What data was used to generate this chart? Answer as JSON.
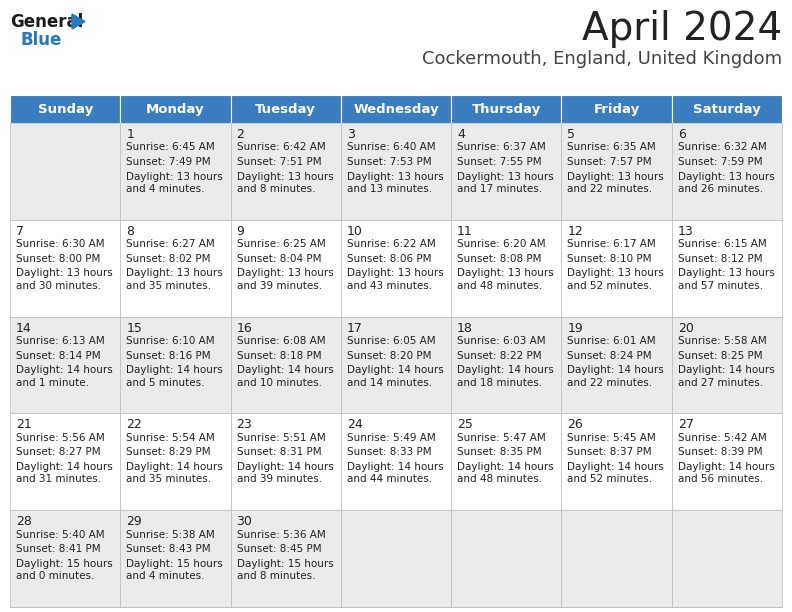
{
  "title": "April 2024",
  "subtitle": "Cockermouth, England, United Kingdom",
  "header_color": "#3a7ebf",
  "header_text_color": "#ffffff",
  "background_color": "#ffffff",
  "row_colors": [
    "#ebebeb",
    "#ffffff"
  ],
  "grid_color": "#bbbbbb",
  "text_color": "#222222",
  "day_headers": [
    "Sunday",
    "Monday",
    "Tuesday",
    "Wednesday",
    "Thursday",
    "Friday",
    "Saturday"
  ],
  "weeks": [
    [
      {
        "day": "",
        "sunrise": "",
        "sunset": "",
        "daylight": ""
      },
      {
        "day": "1",
        "sunrise": "6:45 AM",
        "sunset": "7:49 PM",
        "daylight": "13 hours\nand 4 minutes."
      },
      {
        "day": "2",
        "sunrise": "6:42 AM",
        "sunset": "7:51 PM",
        "daylight": "13 hours\nand 8 minutes."
      },
      {
        "day": "3",
        "sunrise": "6:40 AM",
        "sunset": "7:53 PM",
        "daylight": "13 hours\nand 13 minutes."
      },
      {
        "day": "4",
        "sunrise": "6:37 AM",
        "sunset": "7:55 PM",
        "daylight": "13 hours\nand 17 minutes."
      },
      {
        "day": "5",
        "sunrise": "6:35 AM",
        "sunset": "7:57 PM",
        "daylight": "13 hours\nand 22 minutes."
      },
      {
        "day": "6",
        "sunrise": "6:32 AM",
        "sunset": "7:59 PM",
        "daylight": "13 hours\nand 26 minutes."
      }
    ],
    [
      {
        "day": "7",
        "sunrise": "6:30 AM",
        "sunset": "8:00 PM",
        "daylight": "13 hours\nand 30 minutes."
      },
      {
        "day": "8",
        "sunrise": "6:27 AM",
        "sunset": "8:02 PM",
        "daylight": "13 hours\nand 35 minutes."
      },
      {
        "day": "9",
        "sunrise": "6:25 AM",
        "sunset": "8:04 PM",
        "daylight": "13 hours\nand 39 minutes."
      },
      {
        "day": "10",
        "sunrise": "6:22 AM",
        "sunset": "8:06 PM",
        "daylight": "13 hours\nand 43 minutes."
      },
      {
        "day": "11",
        "sunrise": "6:20 AM",
        "sunset": "8:08 PM",
        "daylight": "13 hours\nand 48 minutes."
      },
      {
        "day": "12",
        "sunrise": "6:17 AM",
        "sunset": "8:10 PM",
        "daylight": "13 hours\nand 52 minutes."
      },
      {
        "day": "13",
        "sunrise": "6:15 AM",
        "sunset": "8:12 PM",
        "daylight": "13 hours\nand 57 minutes."
      }
    ],
    [
      {
        "day": "14",
        "sunrise": "6:13 AM",
        "sunset": "8:14 PM",
        "daylight": "14 hours\nand 1 minute."
      },
      {
        "day": "15",
        "sunrise": "6:10 AM",
        "sunset": "8:16 PM",
        "daylight": "14 hours\nand 5 minutes."
      },
      {
        "day": "16",
        "sunrise": "6:08 AM",
        "sunset": "8:18 PM",
        "daylight": "14 hours\nand 10 minutes."
      },
      {
        "day": "17",
        "sunrise": "6:05 AM",
        "sunset": "8:20 PM",
        "daylight": "14 hours\nand 14 minutes."
      },
      {
        "day": "18",
        "sunrise": "6:03 AM",
        "sunset": "8:22 PM",
        "daylight": "14 hours\nand 18 minutes."
      },
      {
        "day": "19",
        "sunrise": "6:01 AM",
        "sunset": "8:24 PM",
        "daylight": "14 hours\nand 22 minutes."
      },
      {
        "day": "20",
        "sunrise": "5:58 AM",
        "sunset": "8:25 PM",
        "daylight": "14 hours\nand 27 minutes."
      }
    ],
    [
      {
        "day": "21",
        "sunrise": "5:56 AM",
        "sunset": "8:27 PM",
        "daylight": "14 hours\nand 31 minutes."
      },
      {
        "day": "22",
        "sunrise": "5:54 AM",
        "sunset": "8:29 PM",
        "daylight": "14 hours\nand 35 minutes."
      },
      {
        "day": "23",
        "sunrise": "5:51 AM",
        "sunset": "8:31 PM",
        "daylight": "14 hours\nand 39 minutes."
      },
      {
        "day": "24",
        "sunrise": "5:49 AM",
        "sunset": "8:33 PM",
        "daylight": "14 hours\nand 44 minutes."
      },
      {
        "day": "25",
        "sunrise": "5:47 AM",
        "sunset": "8:35 PM",
        "daylight": "14 hours\nand 48 minutes."
      },
      {
        "day": "26",
        "sunrise": "5:45 AM",
        "sunset": "8:37 PM",
        "daylight": "14 hours\nand 52 minutes."
      },
      {
        "day": "27",
        "sunrise": "5:42 AM",
        "sunset": "8:39 PM",
        "daylight": "14 hours\nand 56 minutes."
      }
    ],
    [
      {
        "day": "28",
        "sunrise": "5:40 AM",
        "sunset": "8:41 PM",
        "daylight": "15 hours\nand 0 minutes."
      },
      {
        "day": "29",
        "sunrise": "5:38 AM",
        "sunset": "8:43 PM",
        "daylight": "15 hours\nand 4 minutes."
      },
      {
        "day": "30",
        "sunrise": "5:36 AM",
        "sunset": "8:45 PM",
        "daylight": "15 hours\nand 8 minutes."
      },
      {
        "day": "",
        "sunrise": "",
        "sunset": "",
        "daylight": ""
      },
      {
        "day": "",
        "sunrise": "",
        "sunset": "",
        "daylight": ""
      },
      {
        "day": "",
        "sunrise": "",
        "sunset": "",
        "daylight": ""
      },
      {
        "day": "",
        "sunrise": "",
        "sunset": "",
        "daylight": ""
      }
    ]
  ],
  "logo_general_color": "#1a1a1a",
  "logo_blue_color": "#2878c0",
  "logo_triangle_color": "#2878c0",
  "title_fontsize": 28,
  "subtitle_fontsize": 13,
  "header_fontsize": 9.5,
  "day_num_fontsize": 9,
  "cell_text_fontsize": 7.5
}
